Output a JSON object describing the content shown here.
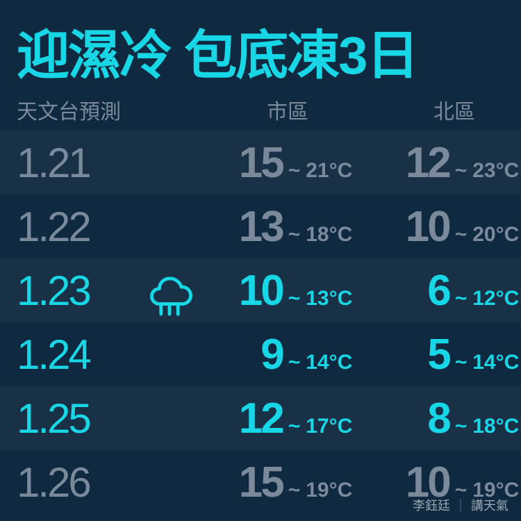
{
  "colors": {
    "background": "#0f2940",
    "highlight": "#17d6e6",
    "muted": "#7a8a9a",
    "stripe": "rgba(255,255,255,0.04)",
    "credit": "#9aa7b3"
  },
  "title": "迎濕冷 包底凍3日",
  "header": {
    "forecast_label": "天文台預測",
    "urban_label": "市區",
    "north_label": "北區"
  },
  "unit": "°C",
  "tilde": "~",
  "rows": [
    {
      "date": "1.21",
      "icon": null,
      "highlight": false,
      "urban_low": "15",
      "urban_high": "21",
      "north_low": "12",
      "north_high": "23",
      "stripe": true
    },
    {
      "date": "1.22",
      "icon": null,
      "highlight": false,
      "urban_low": "13",
      "urban_high": "18",
      "north_low": "10",
      "north_high": "20",
      "stripe": false
    },
    {
      "date": "1.23",
      "icon": "rain",
      "highlight": true,
      "urban_low": "10",
      "urban_high": "13",
      "north_low": "6",
      "north_high": "12",
      "stripe": true
    },
    {
      "date": "1.24",
      "icon": null,
      "highlight": true,
      "urban_low": "9",
      "urban_high": "14",
      "north_low": "5",
      "north_high": "14",
      "stripe": false
    },
    {
      "date": "1.25",
      "icon": null,
      "highlight": true,
      "urban_low": "12",
      "urban_high": "17",
      "north_low": "8",
      "north_high": "18",
      "stripe": true
    },
    {
      "date": "1.26",
      "icon": null,
      "highlight": false,
      "urban_low": "15",
      "urban_high": "19",
      "north_low": "10",
      "north_high": "19",
      "stripe": false
    }
  ],
  "credit": {
    "author": "李鈺廷",
    "separator": "｜",
    "column": "講天氣"
  },
  "typography": {
    "title_fontsize": 76,
    "header_fontsize": 30,
    "date_fontsize": 60,
    "low_fontsize": 62,
    "high_fontsize": 30,
    "credit_fontsize": 18
  }
}
